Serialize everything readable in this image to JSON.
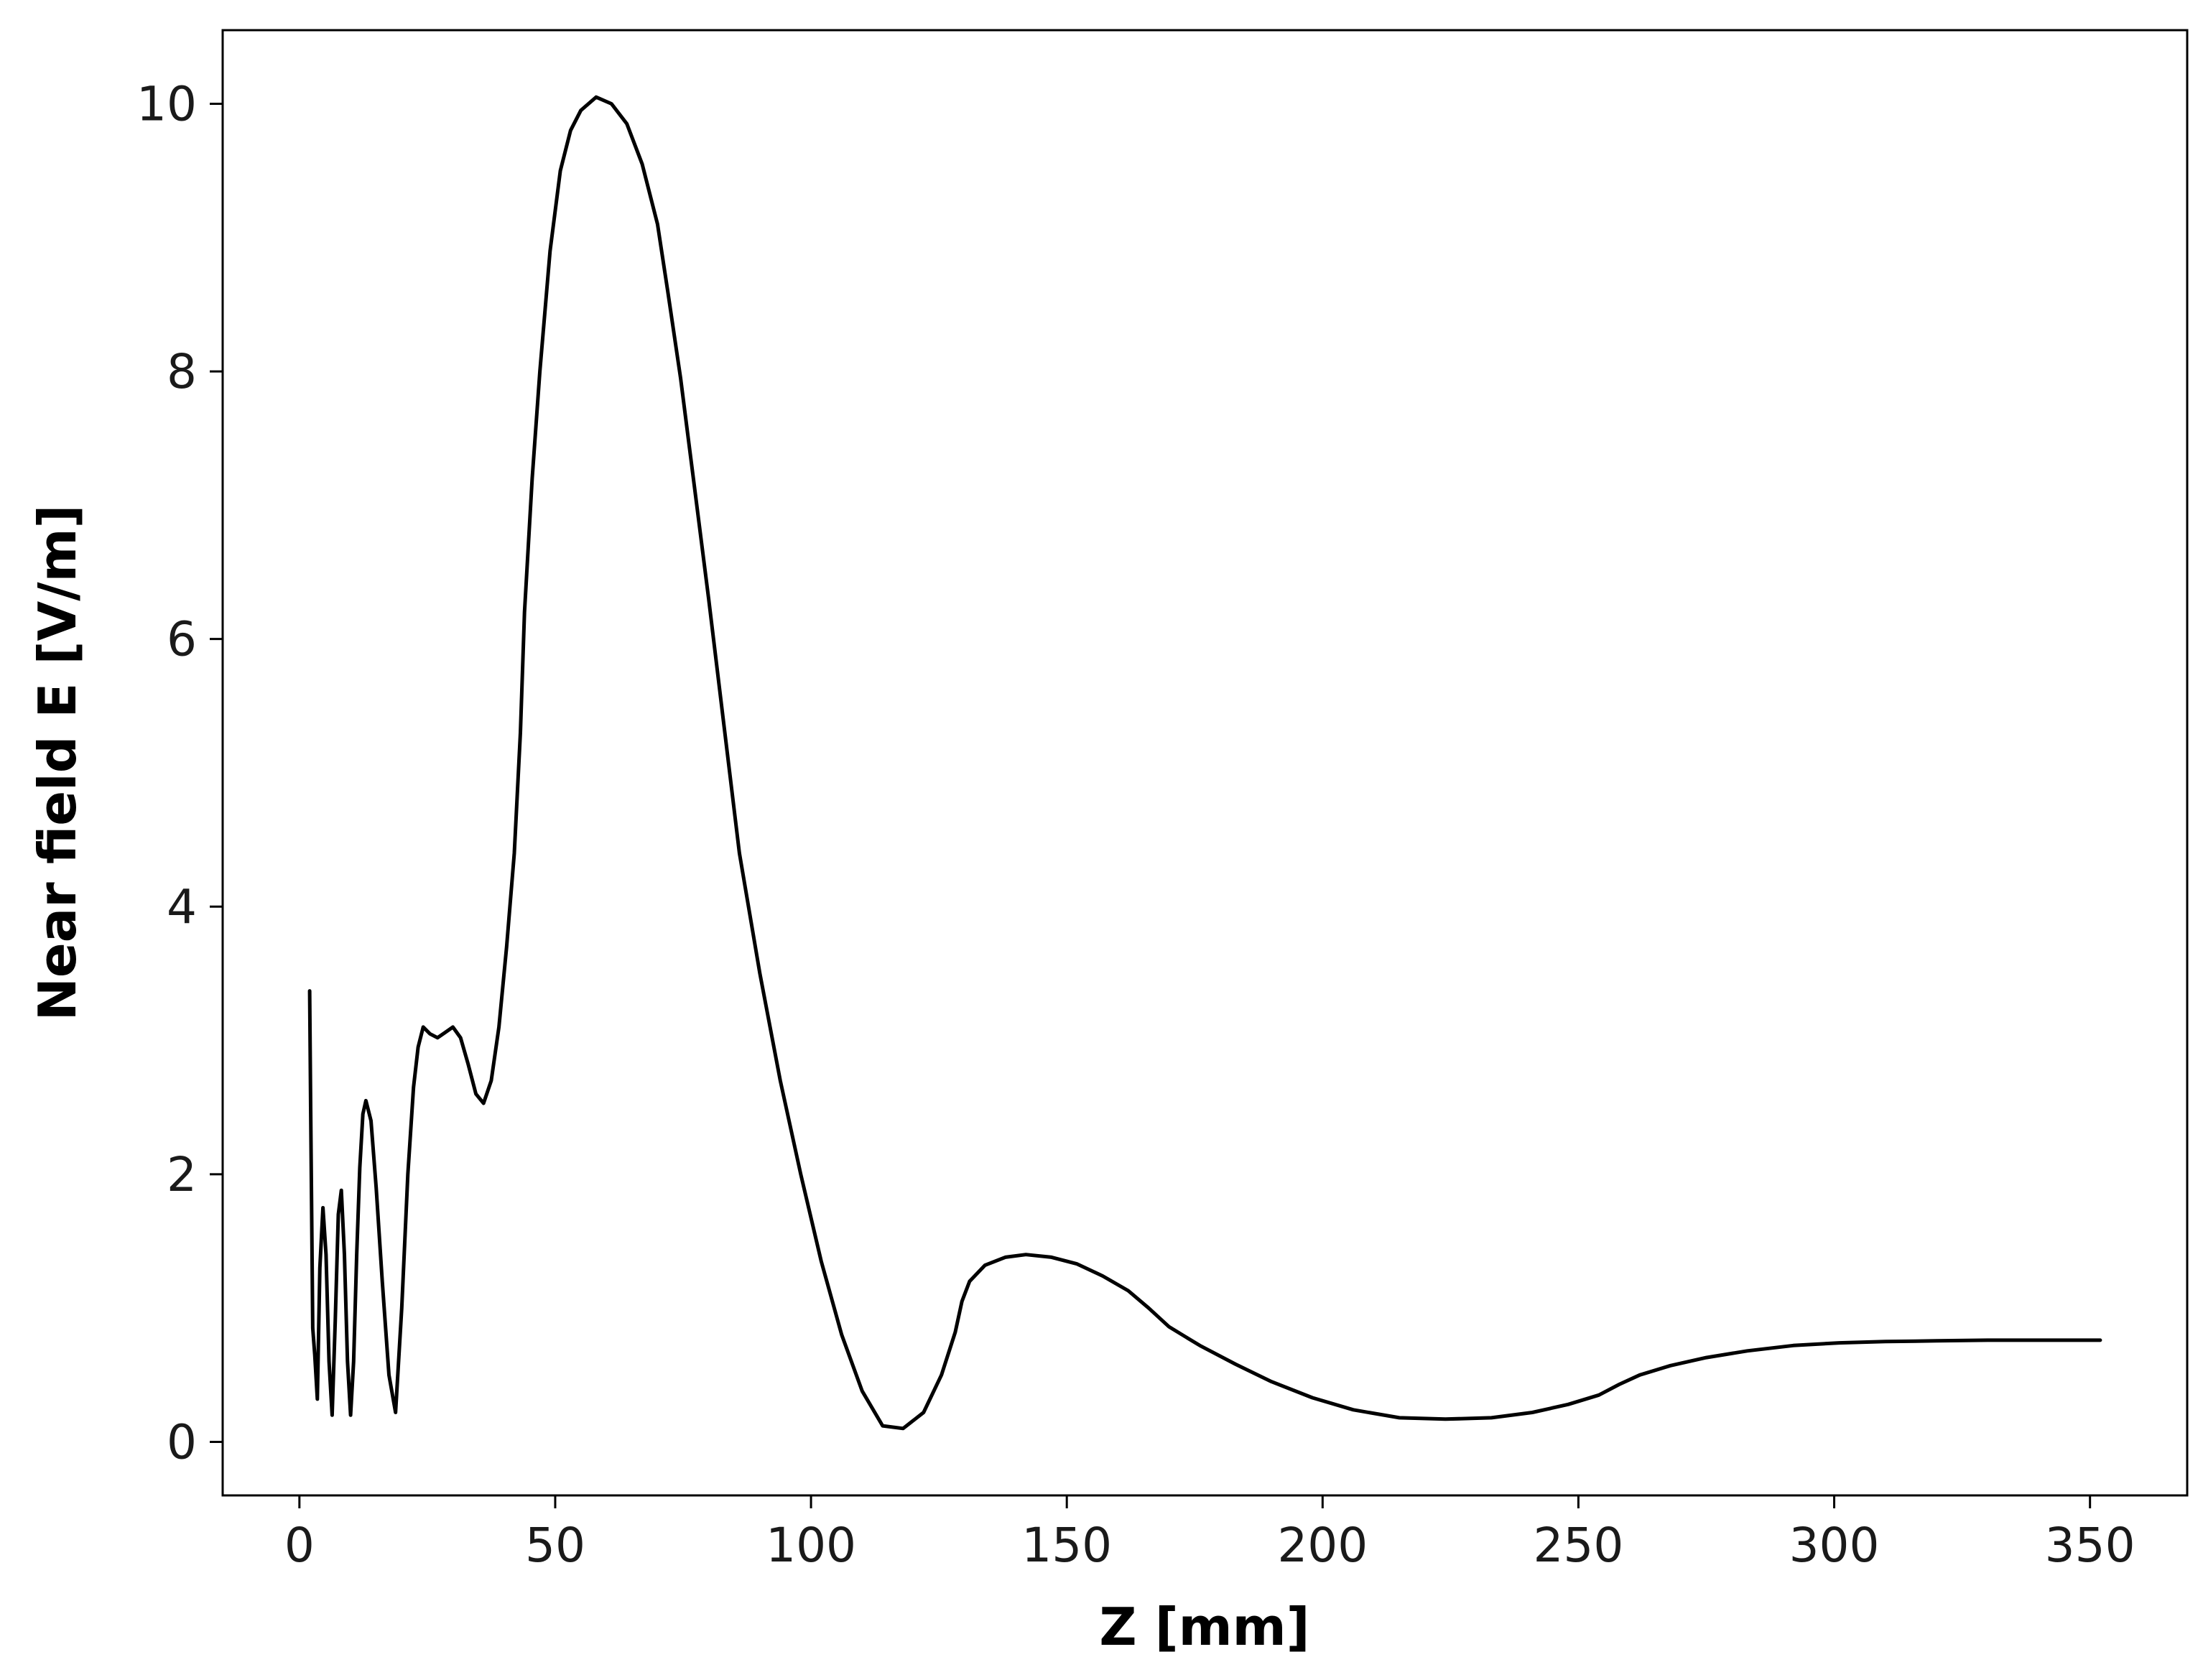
{
  "chart_data": {
    "type": "line",
    "title": "",
    "xlabel": "Z [mm]",
    "ylabel": "Near field E [V/m]",
    "xlim": [
      -15,
      369
    ],
    "ylim": [
      -0.4,
      10.55
    ],
    "xticks": [
      0,
      50,
      100,
      150,
      200,
      250,
      300,
      350
    ],
    "yticks": [
      0,
      2,
      4,
      6,
      8,
      10
    ],
    "grid": false,
    "legend": "none",
    "line_color": "#000000",
    "series": [
      {
        "x": [
          2,
          2.2,
          2.6,
          3.0,
          3.5,
          4.0,
          4.6,
          5.2,
          5.8,
          6.4,
          7.0,
          7.6,
          8.2,
          8.8,
          9.4,
          10.0,
          10.6,
          11.2,
          11.8,
          12.4,
          13.0,
          14.0,
          15.0,
          16.2,
          17.5,
          18.8,
          20.0,
          21.2,
          22.3,
          23.2,
          24.2,
          25.5,
          27.0,
          28.5,
          30.0,
          31.5,
          33.0,
          34.5,
          36.0,
          37.5,
          39.0,
          40.5,
          42.0,
          43.2,
          44.0,
          45.5,
          47.0,
          49.0,
          51.0,
          53.0,
          55.0,
          58.0,
          61.0,
          64.0,
          67.0,
          70.0,
          72.0,
          74.5,
          77.0,
          80.0,
          83.0,
          86.0,
          90.0,
          94.0,
          98.0,
          102.0,
          106.0,
          110.0,
          114.0,
          118.0,
          122.0,
          125.5,
          128.2,
          129.5,
          131.0,
          134.0,
          138.0,
          142.0,
          147.0,
          152.0,
          157.0,
          162.0,
          166.0,
          170.0,
          176.0,
          183.0,
          190.0,
          198.0,
          206.0,
          215.0,
          224.0,
          233.0,
          241.0,
          248.0,
          254.0,
          258.0,
          262.0,
          268.0,
          275.0,
          283.0,
          292.0,
          301.0,
          310.0,
          320.0,
          330.0,
          340.0,
          347.0,
          352.0
        ],
        "values": [
          3.37,
          2.5,
          0.85,
          0.65,
          0.32,
          1.3,
          1.75,
          1.4,
          0.6,
          0.2,
          0.9,
          1.7,
          1.88,
          1.4,
          0.6,
          0.2,
          0.6,
          1.4,
          2.05,
          2.45,
          2.55,
          2.4,
          1.9,
          1.2,
          0.5,
          0.22,
          1.0,
          2.0,
          2.65,
          2.95,
          3.1,
          3.05,
          3.02,
          3.06,
          3.1,
          3.02,
          2.82,
          2.6,
          2.53,
          2.7,
          3.1,
          3.7,
          4.4,
          5.3,
          6.2,
          7.2,
          8.0,
          8.9,
          9.5,
          9.8,
          9.95,
          10.05,
          10.0,
          9.85,
          9.55,
          9.1,
          8.6,
          7.95,
          7.2,
          6.3,
          5.35,
          4.4,
          3.5,
          2.7,
          2.0,
          1.35,
          0.8,
          0.38,
          0.12,
          0.1,
          0.22,
          0.5,
          0.82,
          1.05,
          1.2,
          1.32,
          1.38,
          1.4,
          1.38,
          1.33,
          1.24,
          1.13,
          1.0,
          0.86,
          0.72,
          0.58,
          0.45,
          0.33,
          0.24,
          0.18,
          0.17,
          0.18,
          0.22,
          0.28,
          0.35,
          0.43,
          0.5,
          0.57,
          0.63,
          0.68,
          0.72,
          0.74,
          0.75,
          0.755,
          0.76,
          0.76,
          0.76,
          0.76
        ]
      }
    ]
  }
}
